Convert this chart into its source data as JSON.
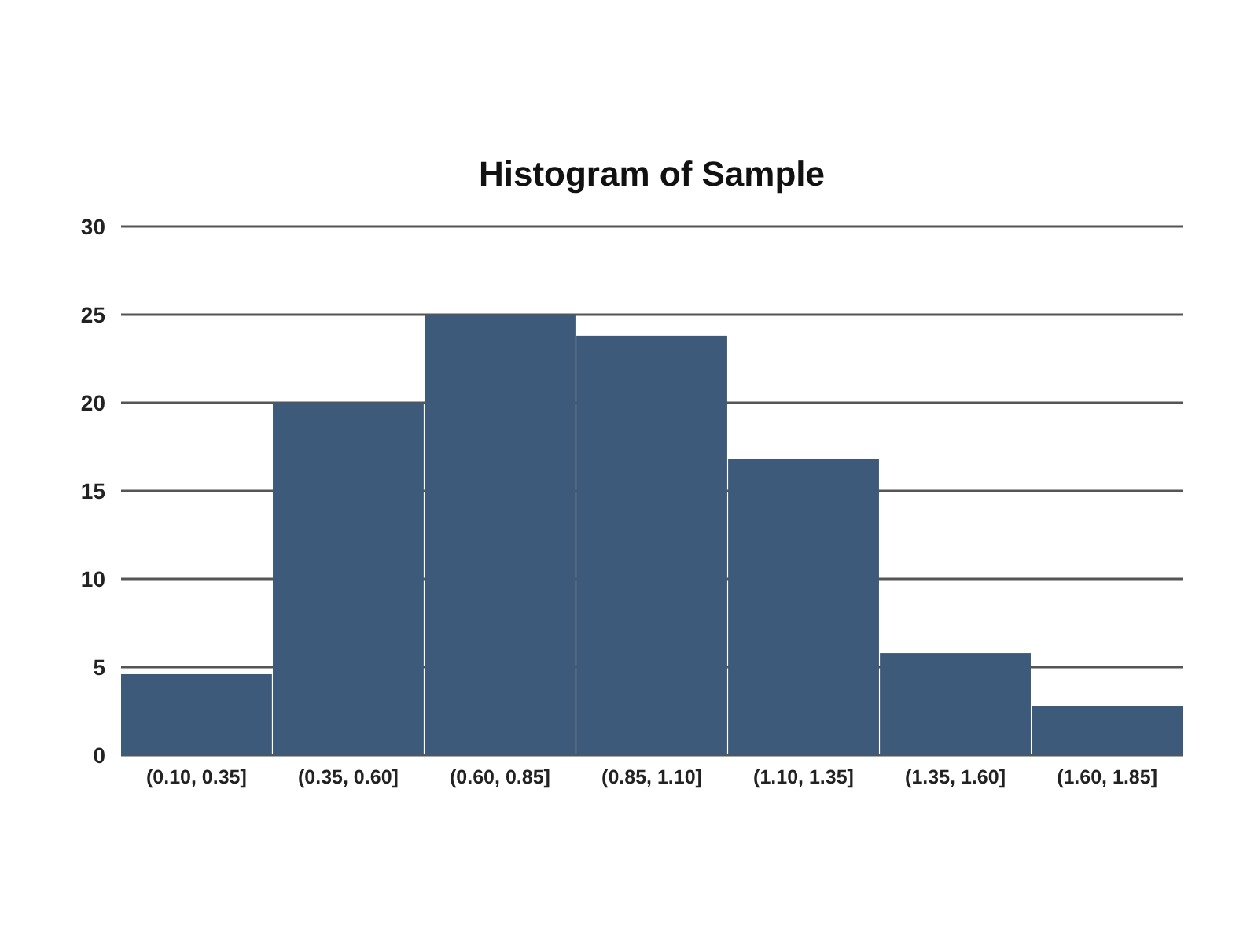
{
  "chart_data": {
    "type": "bar",
    "title": "Histogram of Sample",
    "categories": [
      "(0.10, 0.35]",
      "(0.35, 0.60]",
      "(0.60, 0.85]",
      "(0.85, 1.10]",
      "(1.10, 1.35]",
      "(1.35, 1.60]",
      "(1.60, 1.85]"
    ],
    "values": [
      4.6,
      20,
      25,
      23.8,
      16.8,
      5.8,
      2.8
    ],
    "color": "#3e5a7a",
    "ylim": [
      0,
      30
    ],
    "yticks": [
      0,
      5,
      10,
      15,
      20,
      25,
      30
    ],
    "grid": "y"
  }
}
